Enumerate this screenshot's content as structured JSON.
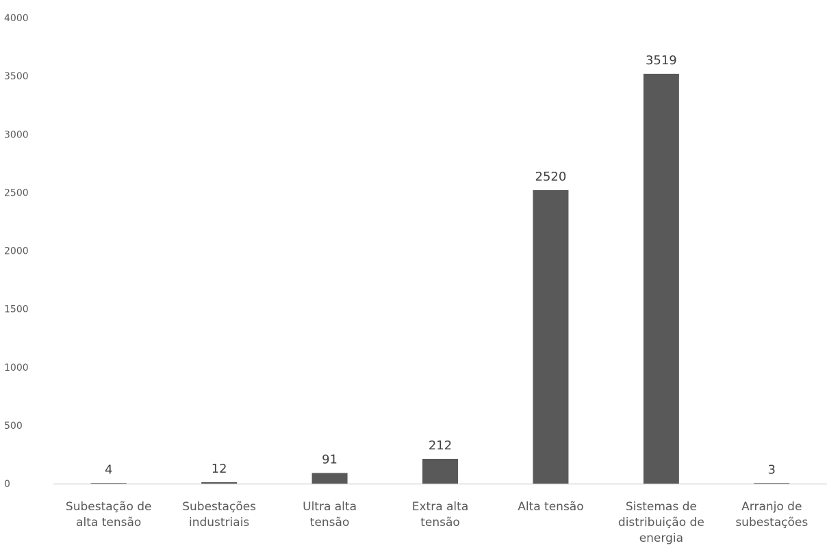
{
  "chart_data": {
    "type": "bar",
    "categories": [
      [
        "Subestação de",
        "alta tensão"
      ],
      [
        "Subestações",
        "industriais"
      ],
      [
        "Ultra alta",
        "tensão"
      ],
      [
        "Extra alta",
        "tensão"
      ],
      [
        "Alta tensão"
      ],
      [
        "Sistemas de",
        "distribuição de",
        "energia"
      ],
      [
        "Arranjo de",
        "subestações"
      ]
    ],
    "values": [
      4,
      12,
      91,
      212,
      2520,
      3519,
      3
    ],
    "data_labels": [
      "4",
      "12",
      "91",
      "212",
      "2520",
      "3519",
      "3"
    ],
    "ylim": [
      0,
      4000
    ],
    "yticks": [
      "0",
      "500",
      "1000",
      "1500",
      "2000",
      "2500",
      "3000",
      "3500",
      "4000"
    ],
    "ytick_values": [
      0,
      500,
      1000,
      1500,
      2000,
      2500,
      3000,
      3500,
      4000
    ],
    "grid": false,
    "legend": "none",
    "bar_color": "#595959",
    "axis_color": "#d9d9d9",
    "text_color": "#595959"
  }
}
